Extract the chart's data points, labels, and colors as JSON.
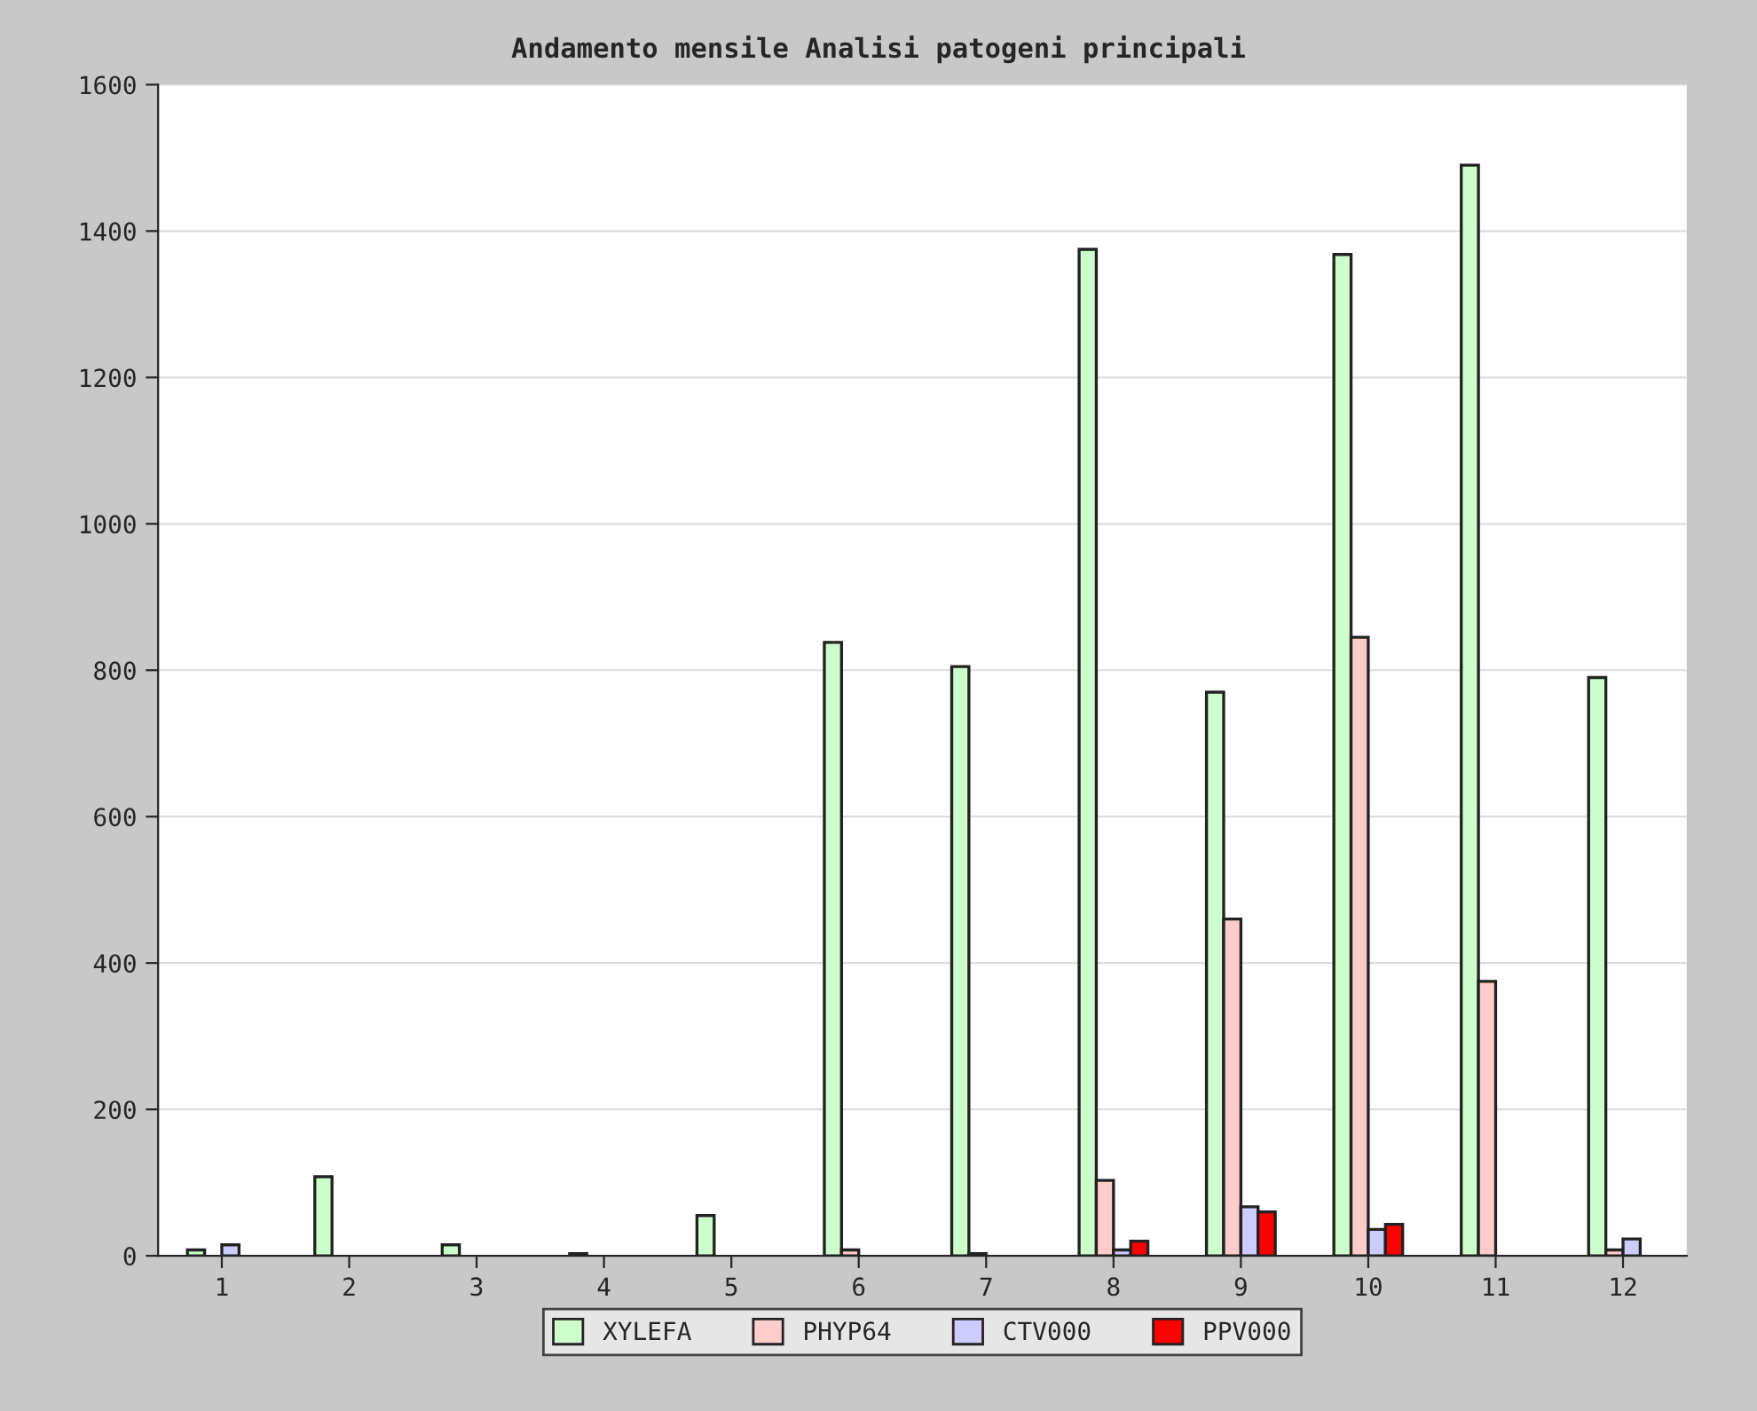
{
  "chart_data": {
    "type": "bar",
    "title": "Andamento mensile Analisi patogeni principali",
    "categories": [
      "1",
      "2",
      "3",
      "4",
      "5",
      "6",
      "7",
      "8",
      "9",
      "10",
      "11",
      "12"
    ],
    "series": [
      {
        "name": "XYLEFA",
        "color": "#ccffcc",
        "values": [
          8,
          108,
          15,
          3,
          55,
          838,
          805,
          1375,
          770,
          1368,
          1490,
          790
        ]
      },
      {
        "name": "PHYP64",
        "color": "#ffcccc",
        "values": [
          0,
          0,
          0,
          0,
          0,
          8,
          3,
          103,
          460,
          845,
          375,
          8
        ]
      },
      {
        "name": "CTV000",
        "color": "#ccccff",
        "values": [
          15,
          0,
          0,
          0,
          0,
          0,
          0,
          8,
          67,
          36,
          0,
          23
        ]
      },
      {
        "name": "PPV000",
        "color": "#ff0000",
        "values": [
          0,
          0,
          0,
          0,
          0,
          0,
          0,
          20,
          60,
          43,
          0,
          0
        ]
      }
    ],
    "ylim": [
      0,
      1600
    ],
    "yticks": [
      0,
      200,
      400,
      600,
      800,
      1000,
      1200,
      1400,
      1600
    ],
    "grid": "y",
    "legend": "bottom"
  }
}
